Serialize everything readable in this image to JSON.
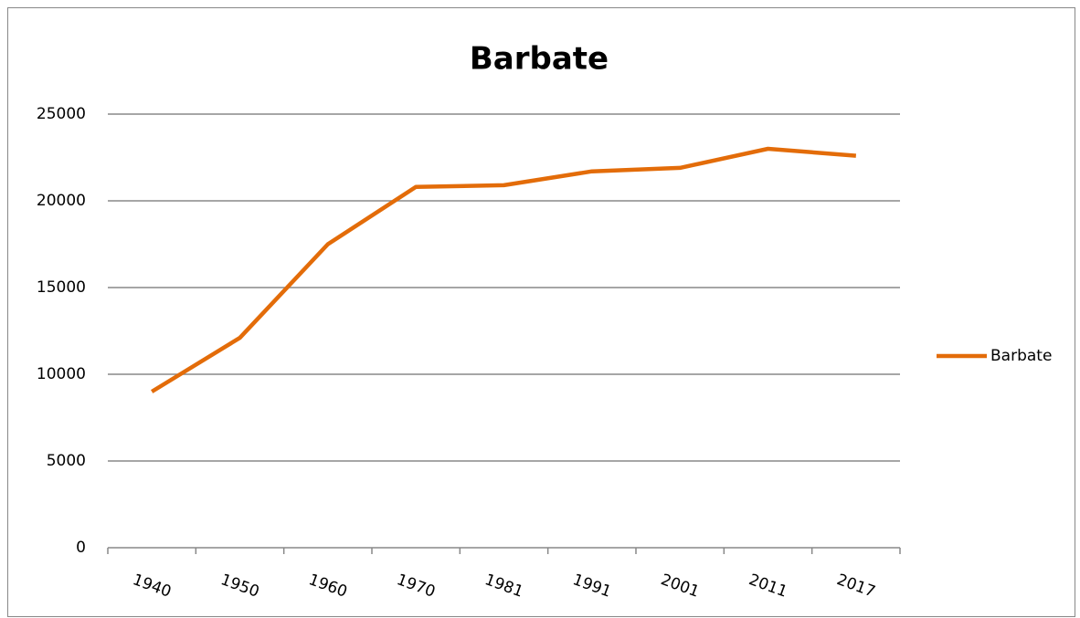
{
  "chart_data": {
    "type": "line",
    "title": "Barbate",
    "categories": [
      "1940",
      "1950",
      "1960",
      "1970",
      "1981",
      "1991",
      "2001",
      "2011",
      "2017"
    ],
    "series": [
      {
        "name": "Barbate",
        "color": "#e36c09",
        "values": [
          9000,
          12100,
          17500,
          20800,
          20900,
          21700,
          21900,
          23000,
          22600
        ]
      }
    ],
    "ylim": [
      0,
      25000
    ],
    "yticks": [
      0,
      5000,
      10000,
      15000,
      20000,
      25000
    ],
    "grid": true,
    "legend": "right"
  }
}
